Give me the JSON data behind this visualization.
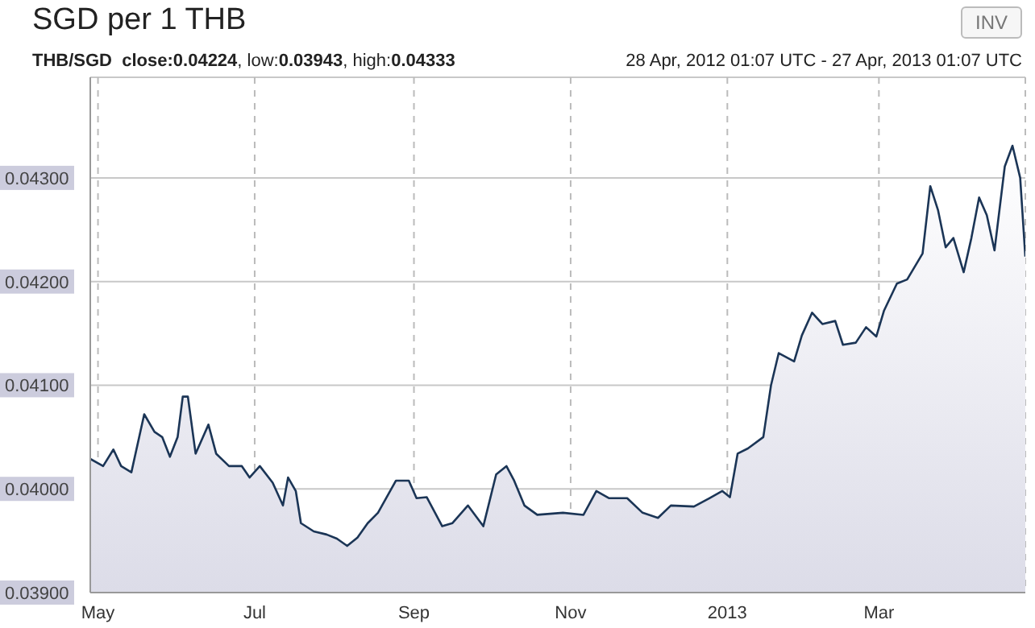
{
  "chart_data": {
    "type": "area",
    "title": "SGD per 1 THB",
    "subtitle": "THB/SGD  close:0.04224, low:0.03943, high:0.04333",
    "annotations": [
      "28 Apr, 2012 01:07 UTC - 27 Apr, 2013 01:07 UTC",
      "INV"
    ],
    "x": [
      "2012-04-28",
      "2012-05-03",
      "2012-05-07",
      "2012-05-10",
      "2012-05-14",
      "2012-05-19",
      "2012-05-23",
      "2012-05-26",
      "2012-05-29",
      "2012-06-01",
      "2012-06-03",
      "2012-06-05",
      "2012-06-08",
      "2012-06-13",
      "2012-06-16",
      "2012-06-21",
      "2012-06-26",
      "2012-06-29",
      "2012-07-03",
      "2012-07-08",
      "2012-07-12",
      "2012-07-14",
      "2012-07-17",
      "2012-07-19",
      "2012-07-24",
      "2012-07-29",
      "2012-08-02",
      "2012-08-06",
      "2012-08-10",
      "2012-08-14",
      "2012-08-18",
      "2012-08-25",
      "2012-08-30",
      "2012-09-02",
      "2012-09-06",
      "2012-09-12",
      "2012-09-16",
      "2012-09-22",
      "2012-09-28",
      "2012-10-03",
      "2012-10-07",
      "2012-10-10",
      "2012-10-14",
      "2012-10-19",
      "2012-10-29",
      "2012-11-06",
      "2012-11-11",
      "2012-11-16",
      "2012-11-23",
      "2012-11-29",
      "2012-12-05",
      "2012-12-10",
      "2012-12-19",
      "2012-12-25",
      "2012-12-30",
      "2013-01-02",
      "2013-01-05",
      "2013-01-09",
      "2013-01-15",
      "2013-01-18",
      "2013-01-21",
      "2013-01-27",
      "2013-01-30",
      "2013-02-03",
      "2013-02-07",
      "2013-02-12",
      "2013-02-15",
      "2013-02-20",
      "2013-02-24",
      "2013-02-28",
      "2013-03-03",
      "2013-03-08",
      "2013-03-12",
      "2013-03-18",
      "2013-03-21",
      "2013-03-24",
      "2013-03-27",
      "2013-03-30",
      "2013-04-03",
      "2013-04-06",
      "2013-04-09",
      "2013-04-12",
      "2013-04-15",
      "2013-04-19",
      "2013-04-22",
      "2013-04-25",
      "2013-04-27"
    ],
    "series": [
      {
        "color": "#1b3556",
        "values": [
          0.04029,
          0.04022,
          0.04038,
          0.04022,
          0.04016,
          0.04072,
          0.04055,
          0.0405,
          0.04031,
          0.0405,
          0.04089,
          0.04089,
          0.04034,
          0.04062,
          0.04034,
          0.04022,
          0.04022,
          0.04011,
          0.04022,
          0.04006,
          0.03984,
          0.04011,
          0.03998,
          0.03967,
          0.03959,
          0.03956,
          0.03952,
          0.03945,
          0.03953,
          0.03967,
          0.03977,
          0.04008,
          0.04008,
          0.03991,
          0.03992,
          0.03964,
          0.03967,
          0.03984,
          0.03964,
          0.04014,
          0.04022,
          0.04008,
          0.03984,
          0.03975,
          0.03977,
          0.03975,
          0.03998,
          0.03991,
          0.03991,
          0.03977,
          0.03972,
          0.03984,
          0.03983,
          0.03991,
          0.03998,
          0.03992,
          0.04034,
          0.04039,
          0.0405,
          0.041,
          0.04131,
          0.04123,
          0.04148,
          0.0417,
          0.04159,
          0.04162,
          0.04139,
          0.04141,
          0.04156,
          0.04147,
          0.04172,
          0.04198,
          0.04202,
          0.04227,
          0.04292,
          0.04269,
          0.04233,
          0.04242,
          0.04209,
          0.04242,
          0.04281,
          0.04264,
          0.0423,
          0.04311,
          0.04331,
          0.043,
          0.04224
        ]
      }
    ],
    "xlim": [
      "2012-04-28",
      "2013-04-27"
    ],
    "xticks": [
      {
        "value": "2012-05-01",
        "label": "May"
      },
      {
        "value": "2012-07-01",
        "label": "Jul"
      },
      {
        "value": "2012-09-01",
        "label": "Sep"
      },
      {
        "value": "2012-11-01",
        "label": "Nov"
      },
      {
        "value": "2013-01-01",
        "label": "2013"
      },
      {
        "value": "2013-03-01",
        "label": "Mar"
      }
    ],
    "ylim": [
      0.039,
      0.04397
    ],
    "yticks": [
      {
        "value": 0.039,
        "label": "0.03900"
      },
      {
        "value": 0.04,
        "label": "0.04000"
      },
      {
        "value": 0.041,
        "label": "0.04100"
      },
      {
        "value": 0.042,
        "label": "0.04200"
      },
      {
        "value": 0.043,
        "label": "0.04300"
      }
    ],
    "grid": true,
    "marker": "none",
    "line_style": "solid"
  }
}
